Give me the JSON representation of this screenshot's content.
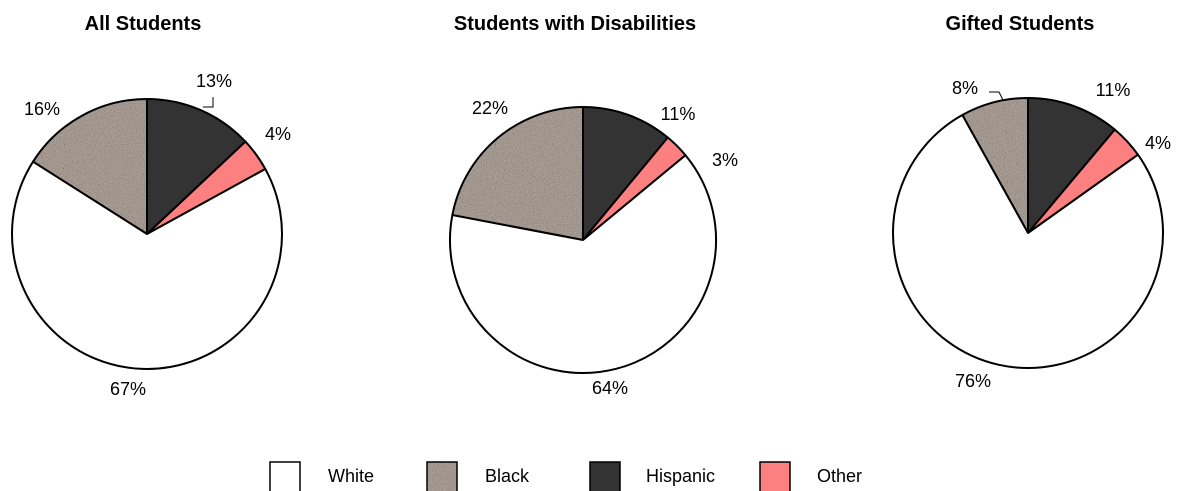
{
  "chart_data": [
    {
      "type": "pie",
      "title": "All Students",
      "categories": [
        "White",
        "Black",
        "Hispanic",
        "Other"
      ],
      "values": [
        67,
        16,
        13,
        4
      ],
      "labels": [
        "67%",
        "16%",
        "13%",
        "4%"
      ]
    },
    {
      "type": "pie",
      "title": "Students with Disabilities",
      "categories": [
        "White",
        "Black",
        "Hispanic",
        "Other"
      ],
      "values": [
        64,
        22,
        11,
        3
      ],
      "labels": [
        "64%",
        "22%",
        "11%",
        "3%"
      ]
    },
    {
      "type": "pie",
      "title": "Gifted Students",
      "categories": [
        "White",
        "Black",
        "Hispanic",
        "Other"
      ],
      "values": [
        76,
        8,
        11,
        4
      ],
      "labels": [
        "76%",
        "8%",
        "11%",
        "4%"
      ]
    }
  ],
  "legend": {
    "placement": "bottom",
    "items": [
      "White",
      "Black",
      "Hispanic",
      "Other"
    ]
  },
  "colors": {
    "White": "#ffffff",
    "Black": "#a89c92",
    "Hispanic": "#333333",
    "Other": "#fc8080"
  }
}
